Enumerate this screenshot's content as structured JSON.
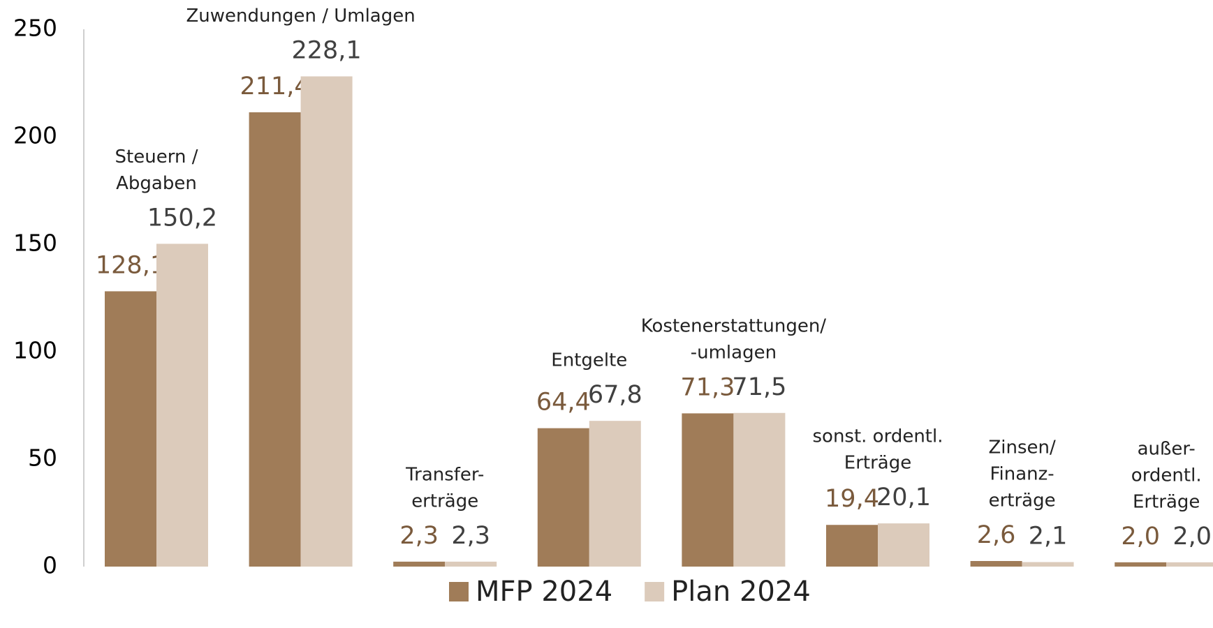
{
  "chart_data": {
    "type": "bar",
    "categories": [
      [
        "Steuern /",
        "Abgaben"
      ],
      [
        "Zuwendungen / Umlagen"
      ],
      [
        "Transfer-",
        "erträge"
      ],
      [
        "Entgelte"
      ],
      [
        "Kostenerstattungen/",
        "-umlagen"
      ],
      [
        "sonst. ordentl.",
        "Erträge"
      ],
      [
        "Zinsen/",
        "Finanz-",
        "erträge"
      ],
      [
        "außer-",
        "ordentl.",
        "Erträge"
      ]
    ],
    "series": [
      {
        "name": "MFP 2024",
        "color": "#a07c58",
        "label_color": "#7a5a3c",
        "values": [
          128.1,
          211.4,
          2.3,
          64.4,
          71.3,
          19.4,
          2.6,
          2.0
        ],
        "value_labels": [
          "128,1",
          "211,4",
          "2,3",
          "64,4",
          "71,3",
          "19,4",
          "2,6",
          "2,0"
        ]
      },
      {
        "name": "Plan 2024",
        "color": "#dccbbb",
        "label_color": "#404040",
        "values": [
          150.2,
          228.1,
          2.3,
          67.8,
          71.5,
          20.1,
          2.1,
          2.0
        ],
        "value_labels": [
          "150,2",
          "228,1",
          "2,3",
          "67,8",
          "71,5",
          "20,1",
          "2,1",
          "2,0"
        ]
      }
    ],
    "ylim": [
      0,
      250
    ],
    "yticks": [
      0,
      50,
      100,
      150,
      200,
      250
    ],
    "grid": false,
    "legend": "bottom"
  }
}
